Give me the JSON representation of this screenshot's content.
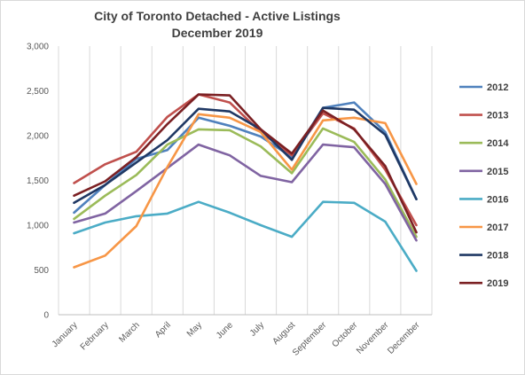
{
  "chart_data": {
    "type": "line",
    "title": "City of Toronto Detached - Active Listings",
    "subtitle": "December 2019",
    "xlabel": "",
    "ylabel": "",
    "categories": [
      "January",
      "February",
      "March",
      "April",
      "May",
      "June",
      "July",
      "August",
      "September",
      "October",
      "November",
      "December"
    ],
    "ylim": [
      0,
      3000
    ],
    "yticks": [
      0,
      500,
      1000,
      1500,
      2000,
      2500,
      3000
    ],
    "ytick_labels": [
      "0",
      "500",
      "1,000",
      "1,500",
      "2,000",
      "2,500",
      "3,000"
    ],
    "grid": "vertical",
    "legend": "right",
    "series": [
      {
        "name": "2012",
        "color": "#4f81bd",
        "values": [
          1140,
          1450,
          1740,
          1840,
          2200,
          2110,
          1990,
          1760,
          2310,
          2370,
          2040,
          1290
        ]
      },
      {
        "name": "2013",
        "color": "#c0504d",
        "values": [
          1470,
          1680,
          1820,
          2210,
          2460,
          2370,
          2040,
          1780,
          2250,
          2080,
          1620,
          1000
        ]
      },
      {
        "name": "2014",
        "color": "#9bbb59",
        "values": [
          1070,
          1330,
          1560,
          1900,
          2070,
          2060,
          1880,
          1580,
          2080,
          1930,
          1510,
          870
        ]
      },
      {
        "name": "2015",
        "color": "#8064a2",
        "values": [
          1030,
          1130,
          1380,
          1640,
          1900,
          1780,
          1550,
          1480,
          1900,
          1870,
          1460,
          830
        ]
      },
      {
        "name": "2016",
        "color": "#4bacc6",
        "values": [
          910,
          1030,
          1100,
          1130,
          1260,
          1140,
          1000,
          870,
          1260,
          1250,
          1040,
          490
        ]
      },
      {
        "name": "2017",
        "color": "#f79646",
        "values": [
          530,
          660,
          990,
          1650,
          2240,
          2200,
          2040,
          1620,
          2170,
          2200,
          2140,
          1460
        ]
      },
      {
        "name": "2018",
        "color": "#1f3864",
        "values": [
          1250,
          1450,
          1700,
          1950,
          2300,
          2270,
          2070,
          1730,
          2310,
          2290,
          2010,
          1290
        ]
      },
      {
        "name": "2019",
        "color": "#7b2023",
        "values": [
          1330,
          1490,
          1760,
          2130,
          2460,
          2450,
          2070,
          1800,
          2280,
          2070,
          1660,
          920
        ]
      }
    ]
  }
}
